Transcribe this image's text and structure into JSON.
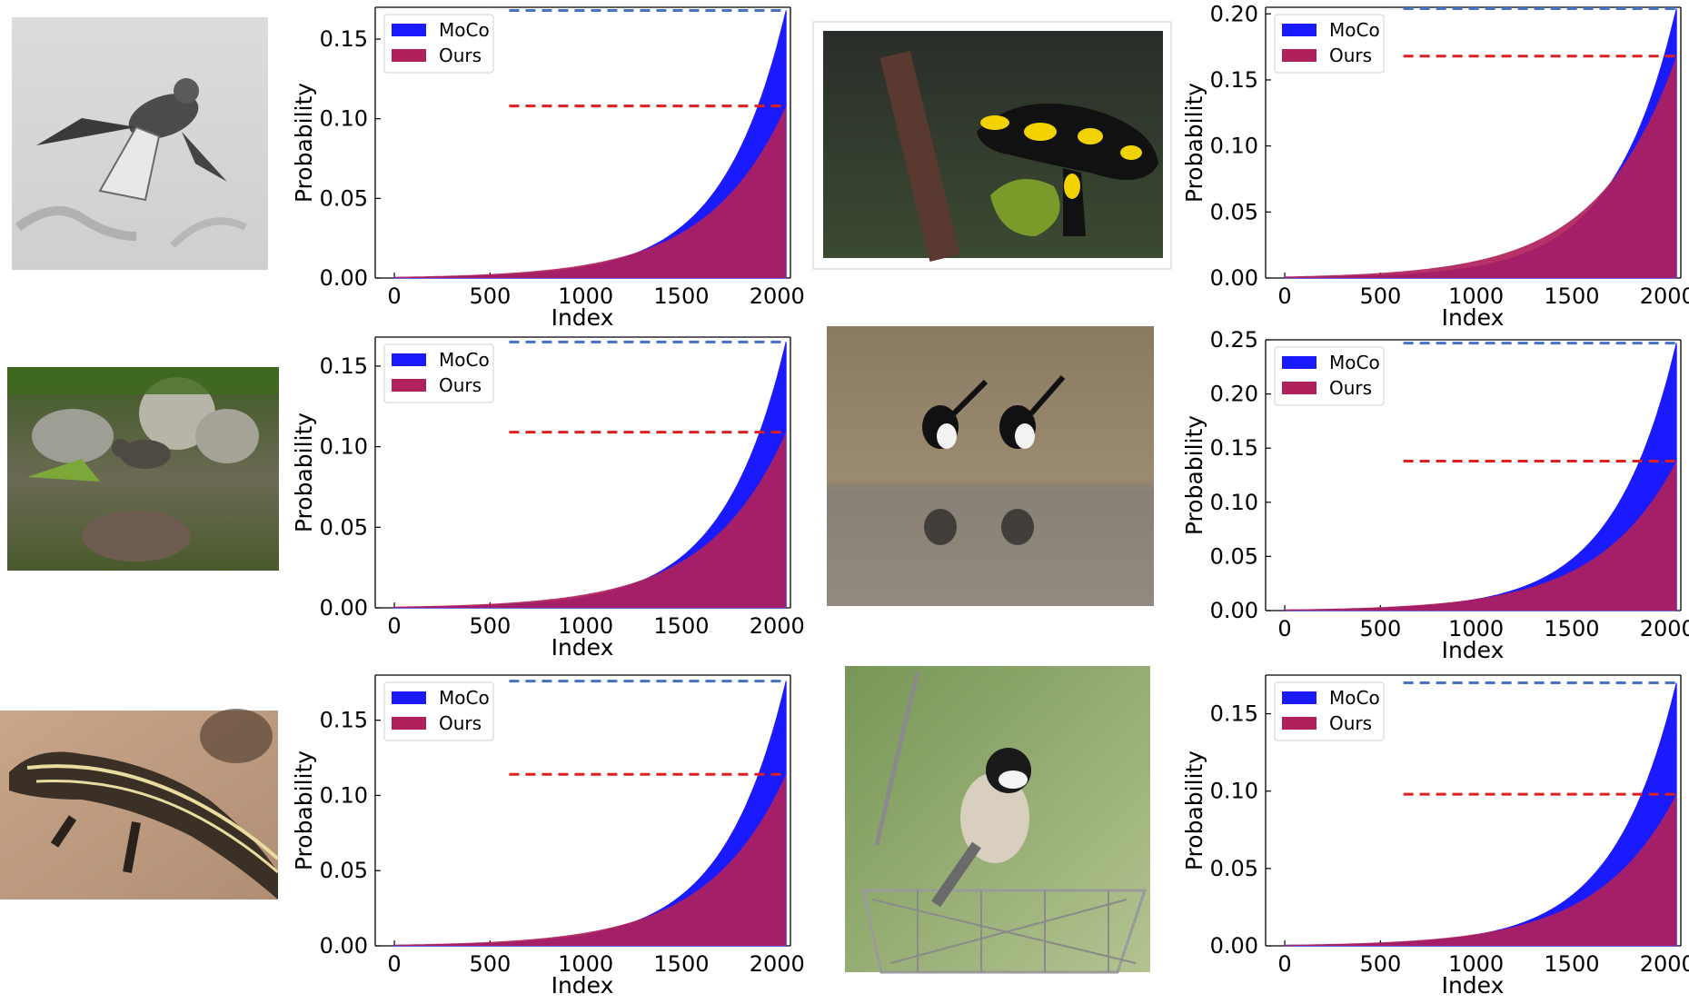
{
  "colors": {
    "moco_fill": "#1a1aff",
    "ours_fill": "#b0205a",
    "moco_line": "#4472c4",
    "ours_line": "#dd1f1f"
  },
  "photos": [
    {
      "name": "bird-in-flight-photo",
      "subject": "grayscale bird in flight"
    },
    {
      "name": "fire-salamander-photo",
      "subject": "black and yellow salamander"
    },
    {
      "name": "dipper-bird-photo",
      "subject": "bird among rocks and water"
    },
    {
      "name": "magpies-photo",
      "subject": "two magpies at water edge"
    },
    {
      "name": "striped-lizard-photo",
      "subject": "striped lizard on sand"
    },
    {
      "name": "chickadee-photo",
      "subject": "chickadee on wire basket"
    }
  ],
  "chart_data": [
    {
      "type": "area",
      "xlabel": "Index",
      "ylabel": "Probability",
      "xlim": [
        -100,
        2070
      ],
      "ylim": [
        0,
        0.17
      ],
      "xticks": [
        "0",
        "500",
        "1000",
        "1500",
        "2000"
      ],
      "yticks": [
        {
          "v": 0,
          "t": "0.00"
        },
        {
          "v": 0.05,
          "t": "0.05"
        },
        {
          "v": 0.1,
          "t": "0.10"
        },
        {
          "v": 0.15,
          "t": "0.15"
        }
      ],
      "series": [
        {
          "name": "MoCo",
          "max": 0.168,
          "line_start": 600
        },
        {
          "name": "Ours",
          "max": 0.108,
          "line_start": 600
        }
      ],
      "legend": "upper-left"
    },
    {
      "type": "area",
      "xlabel": "Index",
      "ylabel": "Probability",
      "xlim": [
        -100,
        2070
      ],
      "ylim": [
        0,
        0.205
      ],
      "xticks": [
        "0",
        "500",
        "1000",
        "1500",
        "2000"
      ],
      "yticks": [
        {
          "v": 0,
          "t": "0.00"
        },
        {
          "v": 0.05,
          "t": "0.05"
        },
        {
          "v": 0.1,
          "t": "0.10"
        },
        {
          "v": 0.15,
          "t": "0.15"
        },
        {
          "v": 0.2,
          "t": "0.20"
        }
      ],
      "series": [
        {
          "name": "MoCo",
          "max": 0.204,
          "line_start": 620
        },
        {
          "name": "Ours",
          "max": 0.168,
          "line_start": 620
        }
      ],
      "legend": "upper-left"
    },
    {
      "type": "area",
      "xlabel": "Index",
      "ylabel": "Probability",
      "xlim": [
        -100,
        2070
      ],
      "ylim": [
        0,
        0.168
      ],
      "xticks": [
        "0",
        "500",
        "1000",
        "1500",
        "2000"
      ],
      "yticks": [
        {
          "v": 0,
          "t": "0.00"
        },
        {
          "v": 0.05,
          "t": "0.05"
        },
        {
          "v": 0.1,
          "t": "0.10"
        },
        {
          "v": 0.15,
          "t": "0.15"
        }
      ],
      "series": [
        {
          "name": "MoCo",
          "max": 0.165,
          "line_start": 600
        },
        {
          "name": "Ours",
          "max": 0.109,
          "line_start": 600
        }
      ],
      "legend": "upper-left"
    },
    {
      "type": "area",
      "xlabel": "Index",
      "ylabel": "Probability",
      "xlim": [
        -100,
        2070
      ],
      "ylim": [
        0,
        0.25
      ],
      "xticks": [
        "0",
        "500",
        "1000",
        "1500",
        "2000"
      ],
      "yticks": [
        {
          "v": 0,
          "t": "0.00"
        },
        {
          "v": 0.05,
          "t": "0.05"
        },
        {
          "v": 0.1,
          "t": "0.10"
        },
        {
          "v": 0.15,
          "t": "0.15"
        },
        {
          "v": 0.2,
          "t": "0.20"
        },
        {
          "v": 0.25,
          "t": "0.25"
        }
      ],
      "series": [
        {
          "name": "MoCo",
          "max": 0.247,
          "line_start": 620
        },
        {
          "name": "Ours",
          "max": 0.138,
          "line_start": 620
        }
      ],
      "legend": "upper-left"
    },
    {
      "type": "area",
      "xlabel": "Index",
      "ylabel": "Probability",
      "xlim": [
        -100,
        2070
      ],
      "ylim": [
        0,
        0.18
      ],
      "xticks": [
        "0",
        "500",
        "1000",
        "1500",
        "2000"
      ],
      "yticks": [
        {
          "v": 0,
          "t": "0.00"
        },
        {
          "v": 0.05,
          "t": "0.05"
        },
        {
          "v": 0.1,
          "t": "0.10"
        },
        {
          "v": 0.15,
          "t": "0.15"
        }
      ],
      "series": [
        {
          "name": "MoCo",
          "max": 0.176,
          "line_start": 600
        },
        {
          "name": "Ours",
          "max": 0.114,
          "line_start": 600
        }
      ],
      "legend": "upper-left"
    },
    {
      "type": "area",
      "xlabel": "Index",
      "ylabel": "Probability",
      "xlim": [
        -100,
        2070
      ],
      "ylim": [
        0,
        0.175
      ],
      "xticks": [
        "0",
        "500",
        "1000",
        "1500",
        "2000"
      ],
      "yticks": [
        {
          "v": 0,
          "t": "0.00"
        },
        {
          "v": 0.05,
          "t": "0.05"
        },
        {
          "v": 0.1,
          "t": "0.10"
        },
        {
          "v": 0.15,
          "t": "0.15"
        }
      ],
      "series": [
        {
          "name": "MoCo",
          "max": 0.17,
          "line_start": 620
        },
        {
          "name": "Ours",
          "max": 0.098,
          "line_start": 620
        }
      ],
      "legend": "upper-left"
    }
  ]
}
